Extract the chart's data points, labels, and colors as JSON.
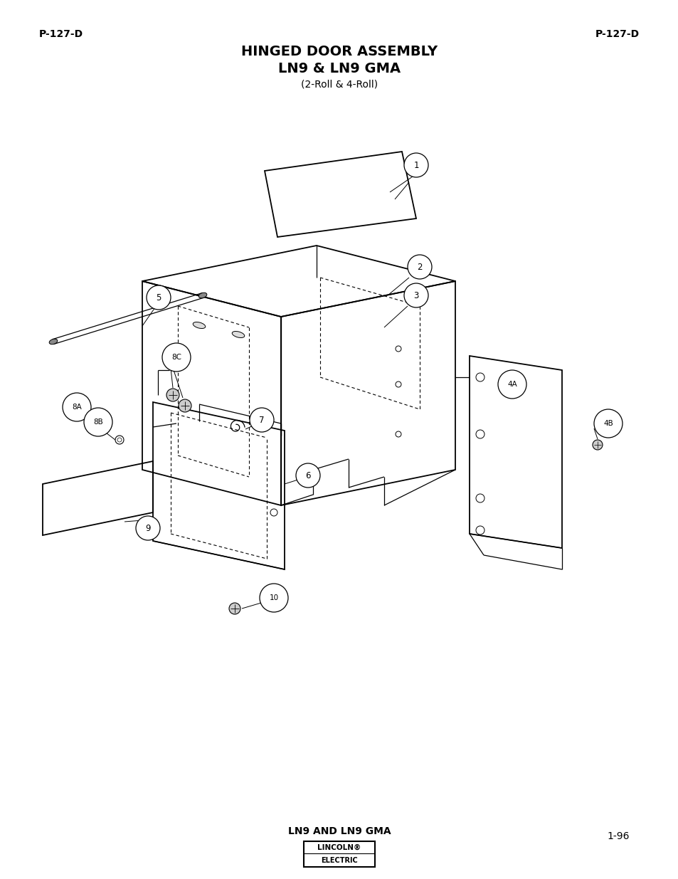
{
  "title_line1": "HINGED DOOR ASSEMBLY",
  "title_line2": "LN9 & LN9 GMA",
  "title_line3": "(2-Roll & 4-Roll)",
  "header_left": "P-127-D",
  "header_right": "P-127-D",
  "footer_center": "LN9 AND LN9 GMA",
  "footer_right": "1-96",
  "bg_color": "#ffffff",
  "text_color": "#000000",
  "line_color": "#000000"
}
